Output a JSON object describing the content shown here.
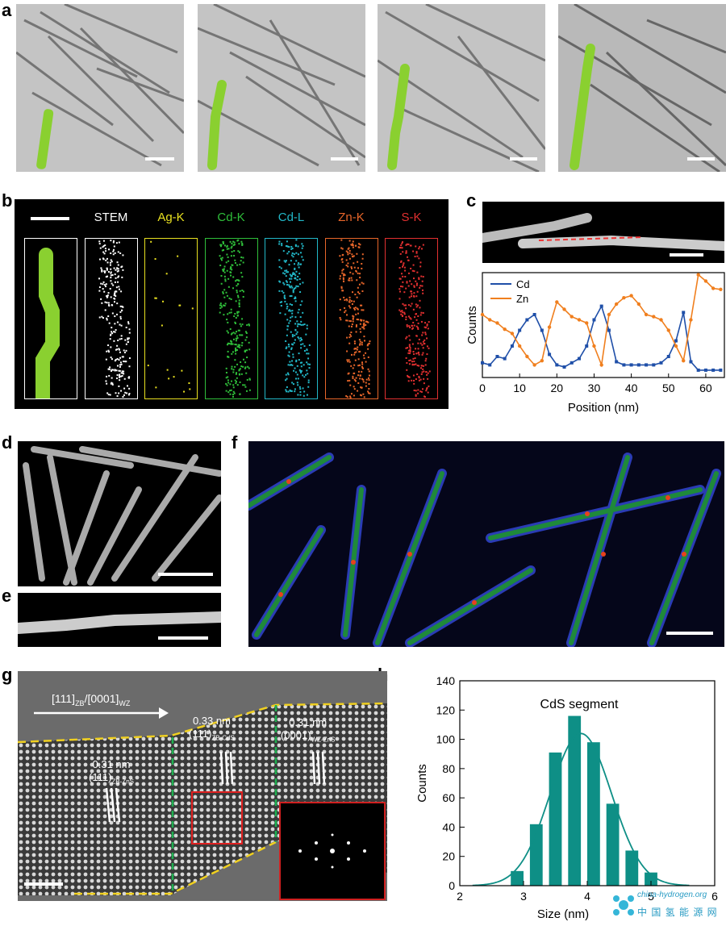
{
  "panels": {
    "a": {
      "label": "a"
    },
    "b": {
      "label": "b",
      "channels": [
        {
          "name": "",
          "color": "#ffffff"
        },
        {
          "name": "STEM",
          "color": "#ffffff"
        },
        {
          "name": "Ag-K",
          "color": "#e8e020"
        },
        {
          "name": "Cd-K",
          "color": "#2fbf3a"
        },
        {
          "name": "Cd-L",
          "color": "#22b8c8"
        },
        {
          "name": "Zn-K",
          "color": "#e8662a"
        },
        {
          "name": "S-K",
          "color": "#e23030"
        }
      ]
    },
    "c": {
      "label": "c"
    },
    "d": {
      "label": "d"
    },
    "e": {
      "label": "e"
    },
    "f": {
      "label": "f"
    },
    "g": {
      "label": "g",
      "direction": "[111]ZB/[0001]WZ",
      "dir_main1": "[111]",
      "dir_sub1": "ZB",
      "dir_main2": "/[0001]",
      "dir_sub2": "WZ",
      "ann1_d": "0.31 nm",
      "ann1_main": "(111)",
      "ann1_sub": "ZB-ZnS",
      "ann2_d": "0.33 nm",
      "ann2_main": "(111)",
      "ann2_sub": "ZB-CdS",
      "ann3_d": "0.31 nm",
      "ann3_main": "(0001)",
      "ann3_sub": "WZ-ZnS"
    },
    "h": {
      "label": "h"
    }
  },
  "watermark": {
    "text1": "china-hydrogen.org",
    "text2": "中 国 氢 能 源 网"
  },
  "chart_data": [
    {
      "type": "line",
      "panel": "c",
      "xlabel": "Position (nm)",
      "ylabel": "Counts",
      "xlim": [
        0,
        65
      ],
      "xticks": [
        0,
        10,
        20,
        30,
        40,
        50,
        60
      ],
      "legend_position": "top-left",
      "series": [
        {
          "name": "Cd",
          "color": "#1f4fa8",
          "x": [
            0,
            2,
            4,
            6,
            8,
            10,
            12,
            14,
            16,
            18,
            20,
            22,
            24,
            26,
            28,
            30,
            32,
            34,
            36,
            38,
            40,
            42,
            44,
            46,
            48,
            50,
            52,
            54,
            56,
            58,
            60,
            62,
            64
          ],
          "y": [
            0.14,
            0.12,
            0.2,
            0.18,
            0.3,
            0.45,
            0.55,
            0.6,
            0.45,
            0.22,
            0.12,
            0.1,
            0.14,
            0.18,
            0.3,
            0.55,
            0.68,
            0.45,
            0.15,
            0.12,
            0.12,
            0.12,
            0.12,
            0.12,
            0.14,
            0.2,
            0.35,
            0.62,
            0.15,
            0.07,
            0.07,
            0.07,
            0.07
          ]
        },
        {
          "name": "Zn",
          "color": "#f07f1e",
          "x": [
            0,
            2,
            4,
            6,
            8,
            10,
            12,
            14,
            16,
            18,
            20,
            22,
            24,
            26,
            28,
            30,
            32,
            34,
            36,
            38,
            40,
            42,
            44,
            46,
            48,
            50,
            52,
            54,
            56,
            58,
            60,
            62,
            64
          ],
          "y": [
            0.6,
            0.55,
            0.52,
            0.46,
            0.42,
            0.3,
            0.2,
            0.12,
            0.16,
            0.48,
            0.72,
            0.65,
            0.58,
            0.55,
            0.52,
            0.3,
            0.12,
            0.6,
            0.7,
            0.76,
            0.78,
            0.7,
            0.6,
            0.58,
            0.55,
            0.45,
            0.3,
            0.16,
            0.55,
            0.98,
            0.92,
            0.85,
            0.84
          ]
        }
      ]
    },
    {
      "type": "bar",
      "panel": "h",
      "title": "CdS segment",
      "xlabel": "Size (nm)",
      "ylabel": "Counts",
      "xlim": [
        2,
        6
      ],
      "ylim": [
        0,
        140
      ],
      "xticks": [
        2,
        3,
        4,
        5,
        6
      ],
      "yticks": [
        0,
        20,
        40,
        60,
        80,
        100,
        120,
        140
      ],
      "bar_width": 0.2,
      "color": "#0e8f86",
      "x": [
        2.9,
        3.2,
        3.5,
        3.8,
        4.1,
        4.4,
        4.7,
        5.0
      ],
      "values": [
        10,
        42,
        91,
        116,
        98,
        56,
        24,
        9
      ],
      "fit_curve": {
        "type": "gaussian",
        "mean": 3.9,
        "sigma": 0.48,
        "amplitude": 104
      }
    }
  ]
}
